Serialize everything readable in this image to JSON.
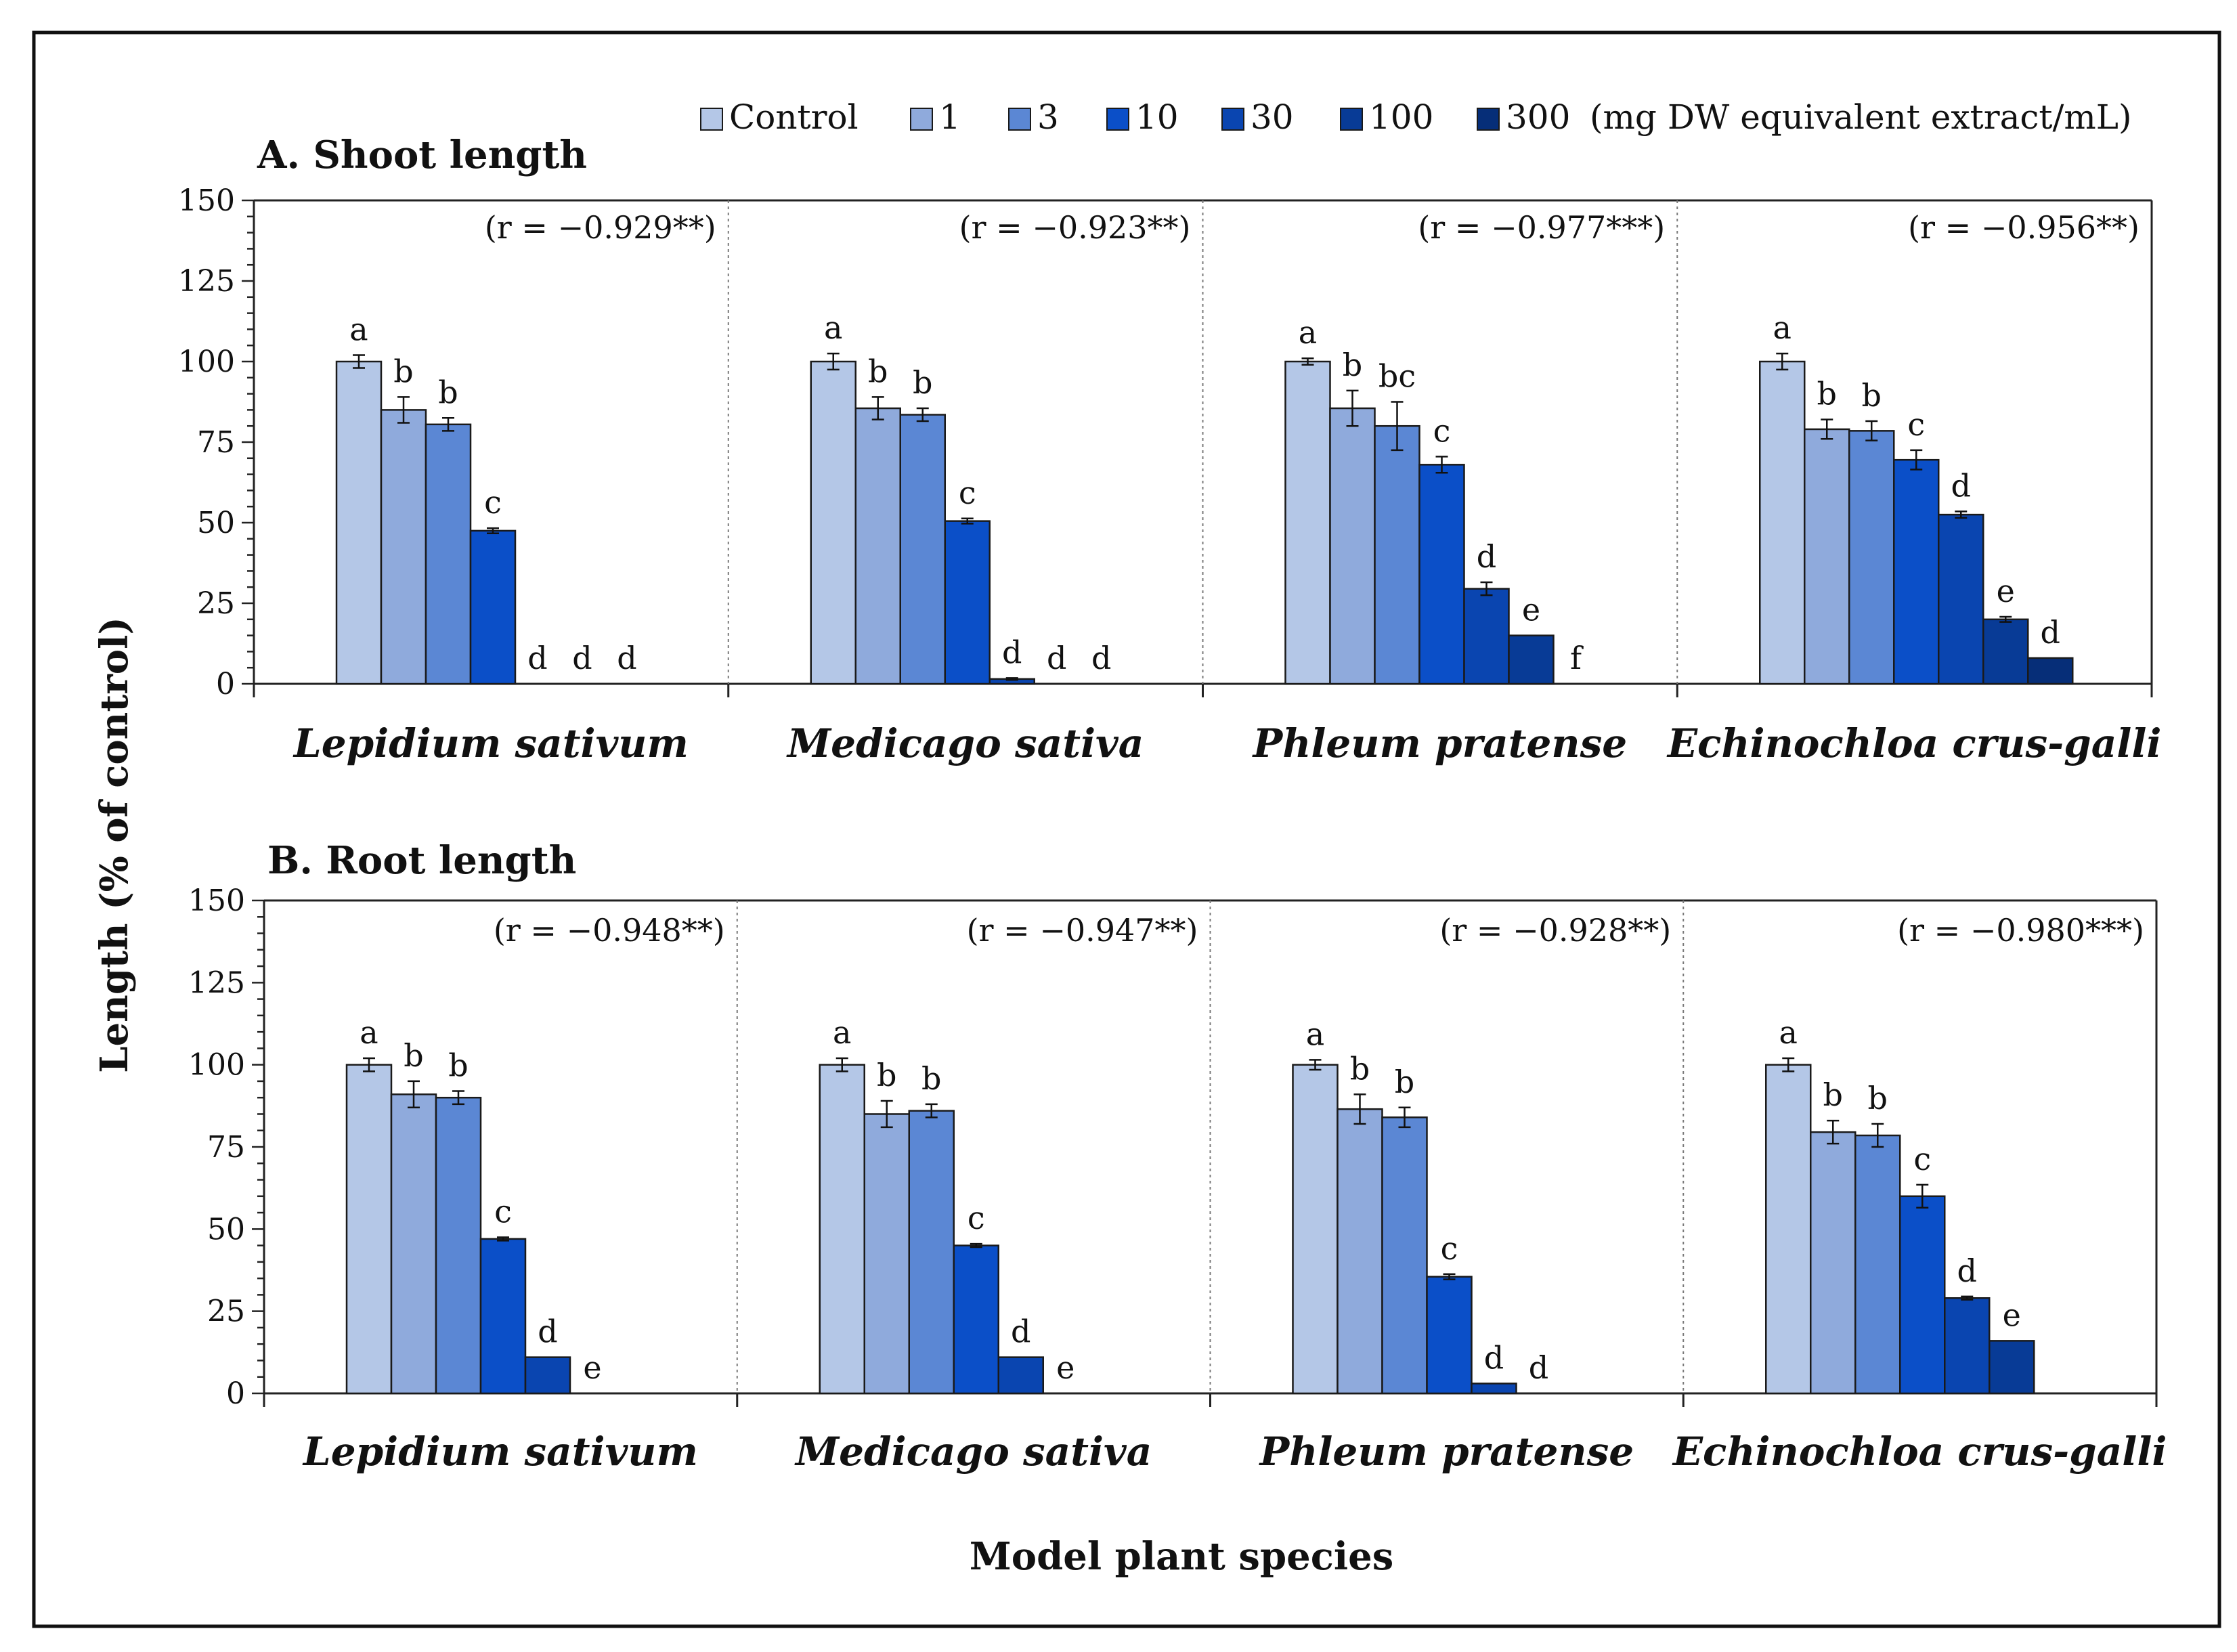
{
  "chart_data": {
    "type": "bar",
    "ylabel": "Length (% of control)",
    "xlabel": "Model plant species",
    "ylim": [
      0,
      150
    ],
    "yticks": [
      "0",
      "25",
      "50",
      "75",
      "100",
      "125",
      "150"
    ],
    "species": [
      "Lepidium sativum",
      "Medicago sativa",
      "Phleum pratense",
      "Echinochloa crus-galli"
    ],
    "legend": {
      "series": [
        "Control",
        "1",
        "3",
        "10",
        "30",
        "100",
        "300"
      ],
      "unit": "(mg DW equivalent extract/mL)",
      "colors": [
        "#b4c7e7",
        "#8faadc",
        "#5b87d4",
        "#0b4fc8",
        "#0a45b0",
        "#083b96",
        "#062e78"
      ]
    },
    "panels": [
      {
        "title": "A. Shoot length",
        "groups": [
          {
            "species": "Lepidium sativum",
            "r": "(r = −0.929**)",
            "values": [
              100,
              85,
              80.5,
              47.5,
              0,
              0,
              0
            ],
            "errors": [
              2,
              4,
              2,
              0.8,
              0,
              0,
              0
            ],
            "letters": [
              "a",
              "b",
              "b",
              "c",
              "d",
              "d",
              "d"
            ]
          },
          {
            "species": "Medicago sativa",
            "r": "(r = −0.923**)",
            "values": [
              100,
              85.5,
              83.5,
              50.5,
              1.5,
              0,
              0
            ],
            "errors": [
              2.5,
              3.5,
              2,
              0.8,
              0.3,
              0,
              0
            ],
            "letters": [
              "a",
              "b",
              "b",
              "c",
              "d",
              "d",
              "d"
            ]
          },
          {
            "species": "Phleum pratense",
            "r": "(r = −0.977***)",
            "values": [
              100,
              85.5,
              80,
              68,
              29.5,
              15,
              0
            ],
            "errors": [
              1,
              5.5,
              7.5,
              2.5,
              2,
              0,
              0
            ],
            "letters": [
              "a",
              "b",
              "bc",
              "c",
              "d",
              "e",
              "f"
            ]
          },
          {
            "species": "Echinochloa crus-galli",
            "r": "(r = −0.956**)",
            "values": [
              100,
              79,
              78.5,
              69.5,
              52.5,
              20,
              8
            ],
            "errors": [
              2.5,
              3,
              3,
              3,
              1,
              0.8,
              0
            ],
            "letters": [
              "a",
              "b",
              "b",
              "c",
              "d",
              "e",
              "d"
            ]
          }
        ]
      },
      {
        "title": "B. Root length",
        "groups": [
          {
            "species": "Lepidium sativum",
            "r": "(r = −0.948**)",
            "values": [
              100,
              91,
              90,
              47,
              11,
              0,
              0
            ],
            "errors": [
              2,
              4,
              2,
              0.5,
              0,
              0,
              0
            ],
            "letters": [
              "a",
              "b",
              "b",
              "c",
              "d",
              "e",
              ""
            ]
          },
          {
            "species": "Medicago sativa",
            "r": "(r = −0.947**)",
            "values": [
              100,
              85,
              86,
              45,
              11,
              0,
              0
            ],
            "errors": [
              2,
              4,
              2,
              0.5,
              0,
              0,
              0
            ],
            "letters": [
              "a",
              "b",
              "b",
              "c",
              "d",
              "e",
              ""
            ]
          },
          {
            "species": "Phleum pratense",
            "r": "(r = −0.928**)",
            "values": [
              100,
              86.5,
              84,
              35.5,
              3,
              0,
              0
            ],
            "errors": [
              1.5,
              4.5,
              3,
              0.8,
              0,
              0,
              0
            ],
            "letters": [
              "a",
              "b",
              "b",
              "c",
              "d",
              "d",
              ""
            ]
          },
          {
            "species": "Echinochloa crus-galli",
            "r": "(r = −0.980***)",
            "values": [
              100,
              79.5,
              78.5,
              60,
              29,
              16,
              0
            ],
            "errors": [
              2,
              3.5,
              3.5,
              3.5,
              0.5,
              0,
              0
            ],
            "letters": [
              "a",
              "b",
              "b",
              "c",
              "d",
              "e",
              ""
            ]
          }
        ]
      }
    ]
  }
}
